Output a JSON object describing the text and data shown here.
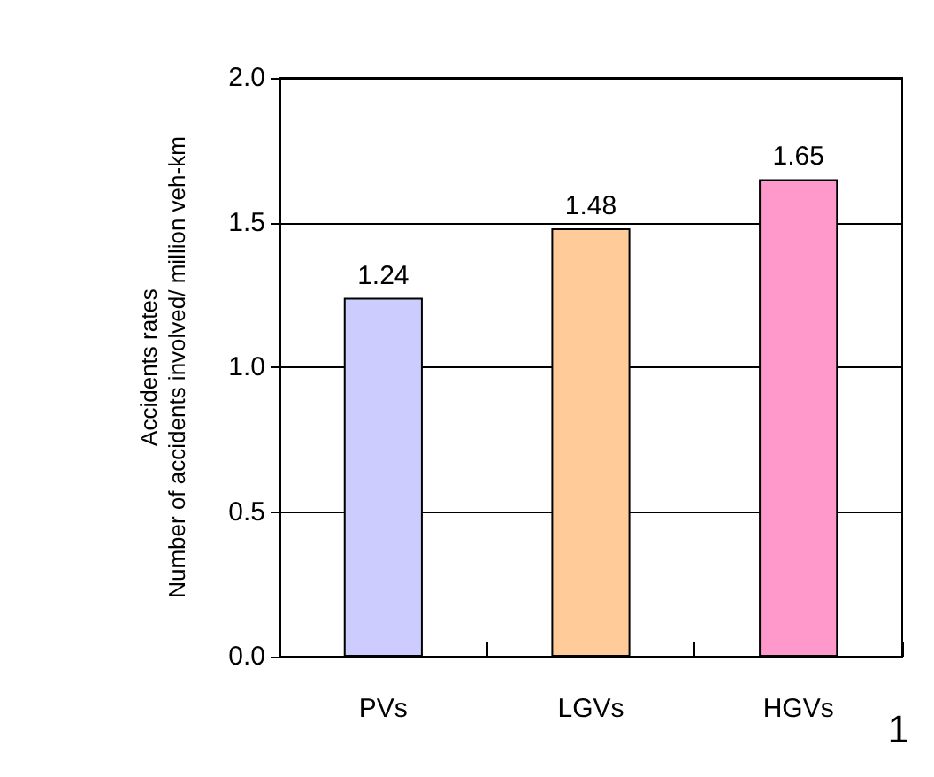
{
  "chart_data": {
    "type": "bar",
    "ylabel": "Accidents rates\nNumber of accidents involved/ million veh-km",
    "categories": [
      "PVs",
      "LGVs",
      "HGVs"
    ],
    "values": [
      1.24,
      1.48,
      1.65
    ],
    "colors": [
      "#ccccff",
      "#ffcc99",
      "#ff99cc"
    ],
    "ylim": [
      0,
      2
    ],
    "yticks": [
      {
        "value": 0,
        "label": "0.0"
      },
      {
        "value": 0.5,
        "label": "0.5"
      },
      {
        "value": 1,
        "label": "1.0"
      },
      {
        "value": 1.5,
        "label": "1.5"
      },
      {
        "value": 2,
        "label": "2.0"
      }
    ],
    "grid": "y",
    "data_labels": true,
    "annotations": [
      "1"
    ]
  }
}
